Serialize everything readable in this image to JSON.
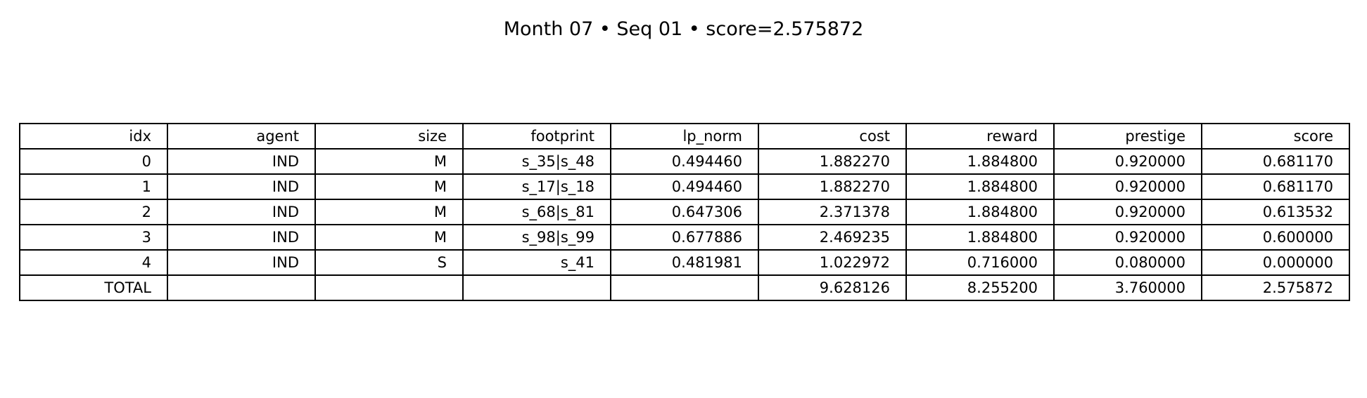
{
  "chart_data": {
    "type": "table",
    "title": "Month 07 • Seq 01 • score=2.575872",
    "columns": [
      "idx",
      "agent",
      "size",
      "footprint",
      "lp_norm",
      "cost",
      "reward",
      "prestige",
      "score"
    ],
    "rows": [
      [
        "0",
        "IND",
        "M",
        "s_35|s_48",
        "0.494460",
        "1.882270",
        "1.884800",
        "0.920000",
        "0.681170"
      ],
      [
        "1",
        "IND",
        "M",
        "s_17|s_18",
        "0.494460",
        "1.882270",
        "1.884800",
        "0.920000",
        "0.681170"
      ],
      [
        "2",
        "IND",
        "M",
        "s_68|s_81",
        "0.647306",
        "2.371378",
        "1.884800",
        "0.920000",
        "0.613532"
      ],
      [
        "3",
        "IND",
        "M",
        "s_98|s_99",
        "0.677886",
        "2.469235",
        "1.884800",
        "0.920000",
        "0.600000"
      ],
      [
        "4",
        "IND",
        "S",
        "s_41",
        "0.481981",
        "1.022972",
        "0.716000",
        "0.080000",
        "0.000000"
      ],
      [
        "TOTAL",
        "",
        "",
        "",
        "",
        "9.628126",
        "8.255200",
        "3.760000",
        "2.575872"
      ]
    ]
  }
}
